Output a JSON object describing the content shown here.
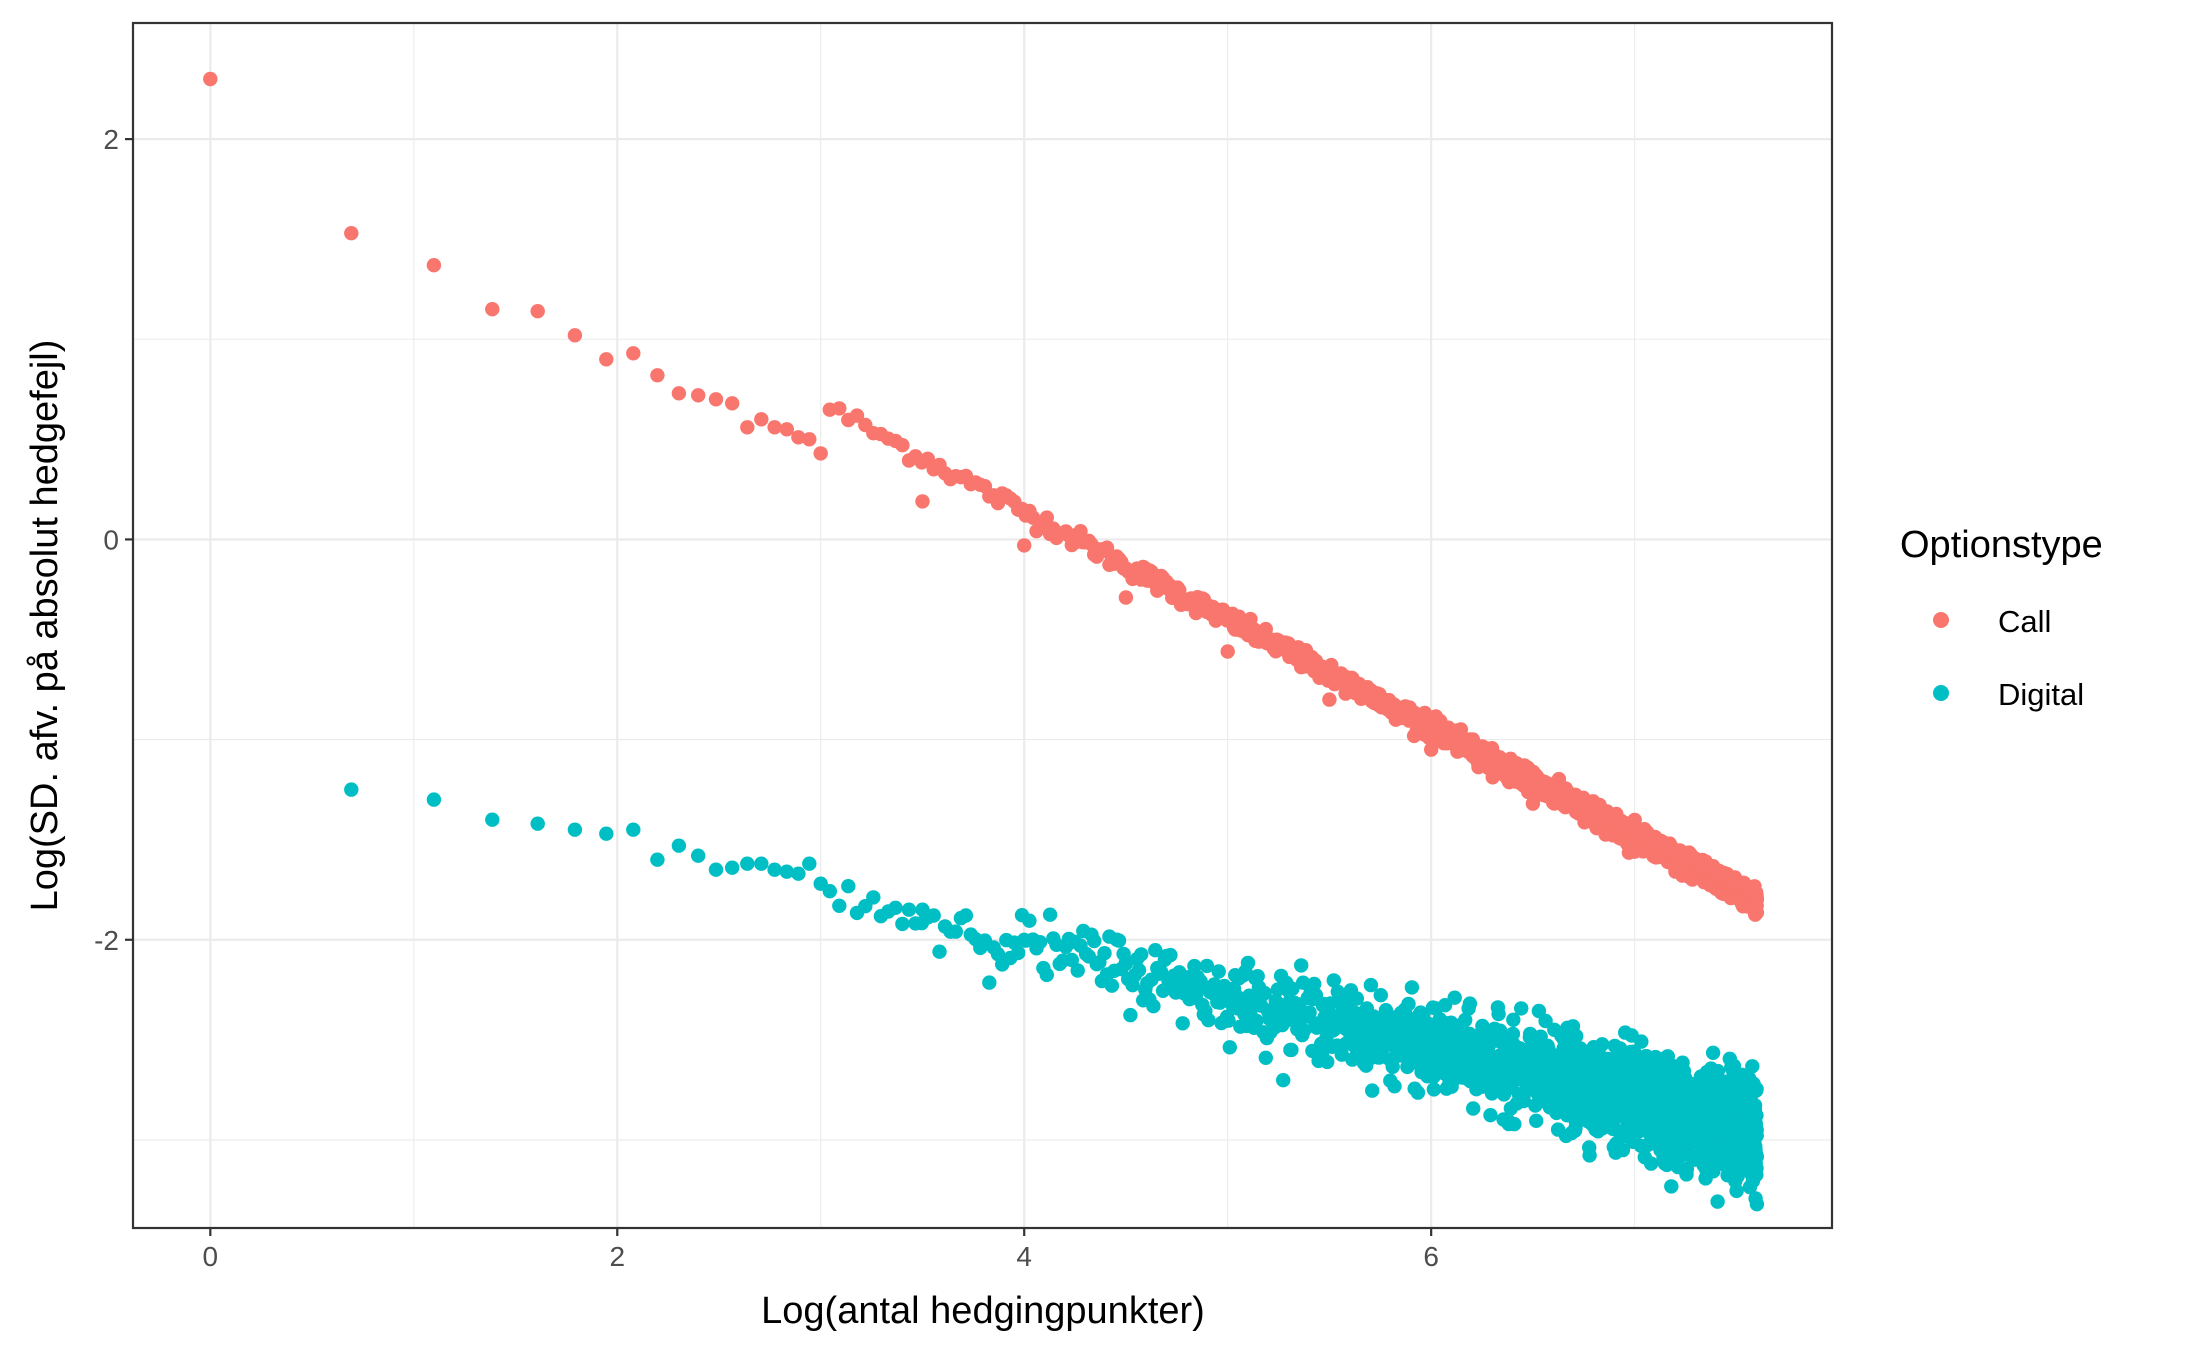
{
  "chart_data": {
    "type": "scatter",
    "title": "",
    "xlabel": "Log(antal hedgingpunkter)",
    "ylabel": "Log(SD. afv. på absolut hedgefejl)",
    "xlim": [
      -0.38,
      7.97
    ],
    "ylim": [
      -3.44,
      2.58
    ],
    "x_ticks": [
      0,
      2,
      4,
      6
    ],
    "y_ticks": [
      -2,
      0,
      2
    ],
    "grid": true,
    "legend": {
      "title": "Optionstype",
      "placement": "right"
    },
    "series": [
      {
        "name": "Call",
        "color": "#F8766D",
        "model": "y = 2.30 - 0.54*x (visible trend; dense band toward high x)",
        "points_sample": [
          [
            0.0,
            2.3
          ],
          [
            0.693,
            1.53
          ],
          [
            1.099,
            1.37
          ],
          [
            1.386,
            1.15
          ],
          [
            1.609,
            1.14
          ],
          [
            1.792,
            1.02
          ],
          [
            1.946,
            0.9
          ],
          [
            2.079,
            0.93
          ],
          [
            2.197,
            0.82
          ],
          [
            2.303,
            0.73
          ],
          [
            2.398,
            0.72
          ],
          [
            2.485,
            0.7
          ],
          [
            2.565,
            0.68
          ],
          [
            2.639,
            0.56
          ],
          [
            2.708,
            0.6
          ],
          [
            2.773,
            0.56
          ],
          [
            2.833,
            0.55
          ],
          [
            2.89,
            0.51
          ],
          [
            2.944,
            0.5
          ],
          [
            3.0,
            0.43
          ],
          [
            3.5,
            0.19
          ],
          [
            4.0,
            -0.03
          ],
          [
            4.5,
            -0.29
          ],
          [
            5.0,
            -0.56
          ],
          [
            5.5,
            -0.8
          ],
          [
            6.0,
            -1.05
          ],
          [
            6.5,
            -1.32
          ],
          [
            7.0,
            -1.56
          ],
          [
            7.6,
            -1.83
          ]
        ]
      },
      {
        "name": "Digital",
        "color": "#00BFC4",
        "model": "y = -0.98 - 0.26*x (visible trend; widening scatter toward high x)",
        "points_sample": [
          [
            0.693,
            -1.25
          ],
          [
            1.099,
            -1.3
          ],
          [
            1.386,
            -1.4
          ],
          [
            1.609,
            -1.42
          ],
          [
            1.792,
            -1.45
          ],
          [
            1.946,
            -1.47
          ],
          [
            2.079,
            -1.45
          ],
          [
            2.197,
            -1.6
          ],
          [
            2.303,
            -1.53
          ],
          [
            2.398,
            -1.58
          ],
          [
            2.485,
            -1.65
          ],
          [
            2.565,
            -1.64
          ],
          [
            2.639,
            -1.62
          ],
          [
            2.708,
            -1.62
          ],
          [
            2.773,
            -1.65
          ],
          [
            2.833,
            -1.66
          ],
          [
            2.89,
            -1.67
          ],
          [
            2.944,
            -1.62
          ],
          [
            3.0,
            -1.72
          ],
          [
            3.5,
            -1.85
          ],
          [
            4.0,
            -2.0
          ],
          [
            4.5,
            -2.12
          ],
          [
            5.0,
            -2.28
          ],
          [
            5.5,
            -2.4
          ],
          [
            6.0,
            -2.52
          ],
          [
            6.5,
            -2.7
          ],
          [
            7.0,
            -2.8
          ],
          [
            7.6,
            -2.95
          ]
        ]
      }
    ]
  }
}
